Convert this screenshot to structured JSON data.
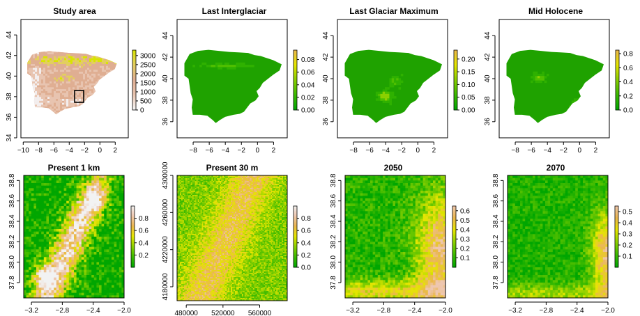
{
  "chart_data": [
    {
      "type": "heatmap",
      "title": "Study area",
      "x_ticks": [
        -10,
        -8,
        -6,
        -4,
        -2,
        0,
        2
      ],
      "y_ticks": [
        34,
        36,
        38,
        40,
        42,
        44
      ],
      "xlim": [
        -10.3,
        3.7
      ],
      "ylim": [
        34,
        45.5
      ],
      "colorbar_ticks": [
        0,
        500,
        1000,
        1500,
        2000,
        2500,
        3000
      ],
      "colorbar_range": [
        0,
        3300
      ],
      "colorbar_colors": [
        "#f5f5f5",
        "#e8c4b0",
        "#dfae92",
        "#e3cf5e",
        "#d8e400"
      ],
      "study_box": {
        "x": [
          -3.3,
          -2.0
        ],
        "y": [
          37.65,
          38.85
        ]
      },
      "map": "iberia-elevation"
    },
    {
      "type": "heatmap",
      "title": "Last Interglaciar",
      "x_ticks": [
        -8,
        -6,
        -4,
        -2,
        0,
        2
      ],
      "y_ticks": [
        36,
        38,
        40,
        42,
        44
      ],
      "xlim": [
        -10.0,
        3.7
      ],
      "ylim": [
        34.5,
        45.5
      ],
      "colorbar_ticks": [
        "0.00",
        "0.02",
        "0.04",
        "0.06",
        "0.08"
      ],
      "colorbar_range": [
        0,
        0.095
      ],
      "colorbar_colors": [
        "#00a600",
        "#3cba00",
        "#8bd000",
        "#e6e600",
        "#eab64e"
      ],
      "map": "iberia-suitability"
    },
    {
      "type": "heatmap",
      "title": "Last Glaciar Maximum",
      "x_ticks": [
        -8,
        -6,
        -4,
        -2,
        0,
        2
      ],
      "y_ticks": [
        36,
        38,
        40,
        42,
        44
      ],
      "xlim": [
        -10.0,
        3.7
      ],
      "ylim": [
        34.5,
        45.5
      ],
      "colorbar_ticks": [
        "0.00",
        "0.05",
        "0.10",
        "0.15",
        "0.20"
      ],
      "colorbar_range": [
        0,
        0.235
      ],
      "colorbar_colors": [
        "#00a600",
        "#3cba00",
        "#8bd000",
        "#e6e600",
        "#eab64e"
      ],
      "map": "iberia-suitability"
    },
    {
      "type": "heatmap",
      "title": "Mid Holocene",
      "x_ticks": [
        -8,
        -6,
        -4,
        -2,
        0,
        2
      ],
      "y_ticks": [
        36,
        38,
        40,
        42,
        44
      ],
      "xlim": [
        -10.0,
        3.7
      ],
      "ylim": [
        34.5,
        45.5
      ],
      "colorbar_ticks": [
        "0.0",
        "0.2",
        "0.4",
        "0.6",
        "0.8"
      ],
      "colorbar_range": [
        0,
        0.85
      ],
      "colorbar_colors": [
        "#00a600",
        "#3cba00",
        "#8bd000",
        "#e6e600",
        "#eab64e"
      ],
      "map": "iberia-suitability"
    },
    {
      "type": "heatmap",
      "title": "Present 1 km",
      "x_ticks": [
        "-3.2",
        "-2.8",
        "-2.4",
        "-2.0"
      ],
      "y_ticks": [
        "37.8",
        "38.0",
        "38.2",
        "38.4",
        "38.6",
        "38.8"
      ],
      "xlim": [
        -3.3,
        -2.0
      ],
      "ylim": [
        37.65,
        38.85
      ],
      "colorbar_ticks": [
        "0.2",
        "0.4",
        "0.6",
        "0.8"
      ],
      "colorbar_range": [
        0,
        1.0
      ],
      "colorbar_colors": [
        "#00a600",
        "#3cba00",
        "#8bd000",
        "#e6e600",
        "#eab64e",
        "#eec7b0",
        "#f2f2f2"
      ],
      "map": "region-suitability"
    },
    {
      "type": "heatmap",
      "title": "Present 30 m",
      "x_ticks": [
        "480000",
        "520000",
        "560000"
      ],
      "y_ticks": [
        "4180000",
        "4220000",
        "4260000",
        "4300000"
      ],
      "xlim": [
        470000,
        590000
      ],
      "ylim": [
        4165000,
        4300000
      ],
      "colorbar_ticks": [
        "0.0",
        "0.2",
        "0.4",
        "0.6",
        "0.8"
      ],
      "colorbar_range": [
        0,
        1.0
      ],
      "colorbar_colors": [
        "#00a600",
        "#3cba00",
        "#8bd000",
        "#e6e600",
        "#eab64e",
        "#eec7b0",
        "#f2f2f2"
      ],
      "map": "region-fine"
    },
    {
      "type": "heatmap",
      "title": "2050",
      "x_ticks": [
        "-3.2",
        "-2.8",
        "-2.4",
        "-2.0"
      ],
      "y_ticks": [
        "37.8",
        "38.0",
        "38.2",
        "38.4",
        "38.6",
        "38.8"
      ],
      "xlim": [
        -3.3,
        -2.0
      ],
      "ylim": [
        37.65,
        38.85
      ],
      "colorbar_ticks": [
        "0.1",
        "0.2",
        "0.3",
        "0.4",
        "0.5",
        "0.6"
      ],
      "colorbar_range": [
        0,
        0.65
      ],
      "colorbar_colors": [
        "#00a600",
        "#3cba00",
        "#8bd000",
        "#e6e600",
        "#eab64e",
        "#eec7b0"
      ],
      "map": "region-future"
    },
    {
      "type": "heatmap",
      "title": "2070",
      "x_ticks": [
        "-3.2",
        "-2.8",
        "-2.4",
        "-2.0"
      ],
      "y_ticks": [
        "37.8",
        "38.0",
        "38.2",
        "38.4",
        "38.6",
        "38.8"
      ],
      "xlim": [
        -3.3,
        -2.0
      ],
      "ylim": [
        37.65,
        38.85
      ],
      "colorbar_ticks": [
        "0.1",
        "0.2",
        "0.3",
        "0.4",
        "0.5"
      ],
      "colorbar_range": [
        0,
        0.55
      ],
      "colorbar_colors": [
        "#00a600",
        "#3cba00",
        "#8bd000",
        "#e6e600",
        "#eab64e",
        "#eec7b0"
      ],
      "map": "region-future"
    }
  ]
}
